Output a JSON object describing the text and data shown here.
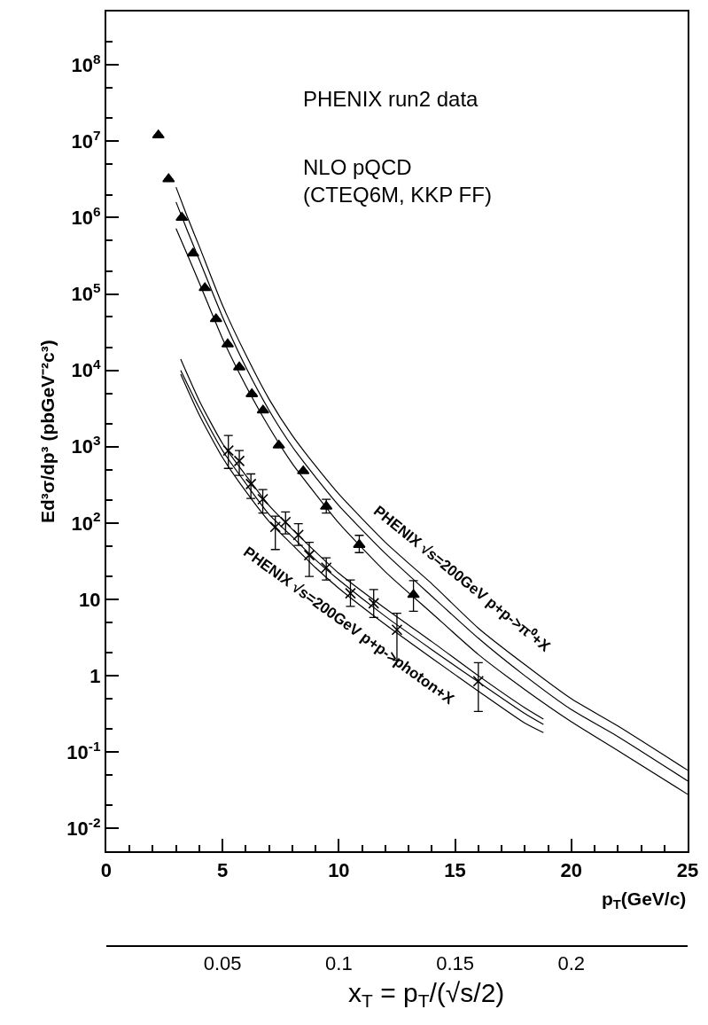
{
  "chart_data": {
    "type": "scatter",
    "xlabel": "p$_{T}$(GeV/c)",
    "ylabel": "Ed³σ/dp³ (pbGeV⁻²c³)",
    "x2label": "x$_{T}$ = p$_{T}$/(√s/2)",
    "xlim": [
      0,
      25
    ],
    "xticks": [
      0,
      5,
      10,
      15,
      20,
      25
    ],
    "x2lim": [
      0,
      0.25
    ],
    "x2ticks": [
      0.05,
      0.1,
      0.15,
      0.2
    ],
    "ylim": [
      0.005,
      500000000
    ],
    "log": "y",
    "yticks": [
      {
        "value": 0.01,
        "label": "10$^{-2}$"
      },
      {
        "value": 0.1,
        "label": "10$^{-1}$"
      },
      1,
      10,
      {
        "value": 100,
        "label": "10$^{2}$"
      },
      {
        "value": 1000,
        "label": "10$^{3}$"
      },
      {
        "value": 10000,
        "label": "10$^{4}$"
      },
      {
        "value": 100000,
        "label": "10$^{5}$"
      },
      {
        "value": 1000000,
        "label": "10$^{6}$"
      },
      {
        "value": 10000000,
        "label": "10$^{7}$"
      },
      {
        "value": 100000000,
        "label": "10$^{8}$"
      }
    ],
    "annotations": [
      "PHENIX run2 data",
      "NLO pQCD\n(CTEQ6M, KKP FF)",
      "PHENIX √s=200GeV p+p->π⁰+X",
      "PHENIX √s=200GeV p+p->photon+X"
    ],
    "series": [
      {
        "marker": "triangle",
        "color": "#000000",
        "x": [
          2.24,
          2.68,
          3.25,
          3.73,
          4.24,
          4.72,
          5.22,
          5.72,
          6.26,
          6.74,
          7.42,
          8.47,
          9.46,
          10.88,
          13.21
        ],
        "values": [
          12000000,
          3200000,
          1000000,
          340000,
          120000,
          47000,
          22000,
          11000,
          4900,
          3000,
          1040,
          480,
          165,
          52,
          11.5
        ],
        "errors": [
          null,
          null,
          null,
          null,
          null,
          null,
          null,
          null,
          null,
          null,
          null,
          null,
          [
            135,
            205
          ],
          [
            41,
            69
          ],
          [
            7.0,
            17.6
          ]
        ]
      },
      {
        "marker": "cross",
        "color": "#000000",
        "x": [
          5.25,
          5.72,
          6.22,
          6.73,
          7.27,
          7.71,
          8.26,
          8.73,
          9.46,
          10.5,
          11.5,
          12.5,
          16.0
        ],
        "values": [
          890,
          650,
          325,
          205,
          89,
          103,
          70,
          38,
          26,
          12,
          8.9,
          4.0,
          0.85
        ],
        "errors": [
          [
            520,
            1400
          ],
          [
            420,
            890
          ],
          [
            210,
            440
          ],
          [
            135,
            275
          ],
          [
            45,
            123
          ],
          [
            72,
            140
          ],
          [
            51,
            98
          ],
          [
            20,
            56
          ],
          [
            18,
            35
          ],
          [
            8.1,
            18
          ],
          [
            5.8,
            13.5
          ],
          [
            1.6,
            6.6
          ],
          [
            0.34,
            1.48
          ]
        ]
      },
      {
        "type": "line",
        "marker": "none",
        "color": "#000000",
        "x": [
          3.0,
          3.5,
          4,
          5,
          6,
          7,
          8,
          9,
          10,
          12,
          14,
          16,
          18,
          20,
          22,
          25
        ],
        "values": [
          2500000,
          1000000,
          420000,
          71000,
          16000,
          4200,
          1400,
          560,
          240,
          56,
          16,
          4.2,
          1.4,
          0.5,
          0.22,
          0.058
        ]
      },
      {
        "type": "line",
        "marker": "none",
        "color": "#000000",
        "x": [
          3.0,
          3.5,
          4,
          5,
          6,
          7,
          8,
          9,
          10,
          12,
          14,
          16,
          18,
          20,
          22,
          25
        ],
        "values": [
          1600000,
          660000,
          280000,
          50000,
          11000,
          3000,
          1000,
          400,
          170,
          40,
          11,
          3.1,
          1.0,
          0.36,
          0.16,
          0.042
        ]
      },
      {
        "type": "line",
        "marker": "none",
        "color": "#000000",
        "x": [
          3.0,
          3.5,
          4,
          5,
          6,
          7,
          8,
          9,
          10,
          12,
          14,
          16,
          18,
          20,
          22,
          25
        ],
        "values": [
          720000,
          320000,
          140000,
          26000,
          6300,
          1800,
          600,
          240,
          100,
          23,
          6.6,
          1.9,
          0.66,
          0.25,
          0.105,
          0.028
        ]
      },
      {
        "type": "line",
        "marker": "none",
        "color": "#000000",
        "x": [
          3.2,
          4,
          5,
          6,
          7,
          8,
          9,
          10,
          12,
          14,
          16,
          18,
          18.8
        ],
        "values": [
          14000,
          4000,
          1100,
          420,
          170,
          83,
          42,
          22,
          7.6,
          2.8,
          1.0,
          0.38,
          0.27
        ]
      },
      {
        "type": "line",
        "marker": "none",
        "color": "#000000",
        "x": [
          3.2,
          4,
          5,
          6,
          7,
          8,
          9,
          10,
          12,
          14,
          16,
          18,
          18.8
        ],
        "values": [
          10000,
          3200,
          890,
          330,
          130,
          66,
          33,
          18,
          6.0,
          2.2,
          0.83,
          0.32,
          0.23
        ]
      },
      {
        "type": "line",
        "marker": "none",
        "color": "#000000",
        "x": [
          3.2,
          4,
          5,
          6,
          7,
          8,
          9,
          10,
          12,
          14,
          16,
          18,
          18.8
        ],
        "values": [
          8900,
          2600,
          720,
          260,
          105,
          52,
          26,
          14,
          4.7,
          1.7,
          0.63,
          0.24,
          0.18
        ]
      }
    ]
  }
}
